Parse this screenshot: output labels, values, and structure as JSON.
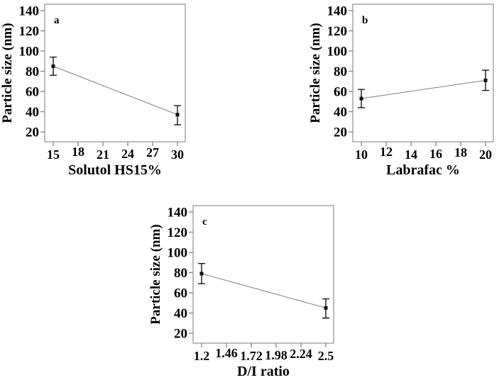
{
  "figure": {
    "background_color": "#ffffff",
    "text_color": "#000000",
    "colors": {
      "plot_border": "#a6a6a6",
      "tick_mark": "#8c8c8c",
      "trend_line": "#7f7f7f",
      "marker_and_error_bar": "#141414"
    }
  },
  "chart_data": [
    {
      "type": "line",
      "panel_label": "a",
      "title": "",
      "xlabel": "Solutol HS15%",
      "ylabel": "Particle size (nm)",
      "x_tick_labels": [
        "15",
        "18",
        "21",
        "24",
        "27",
        "30"
      ],
      "y_ticks": [
        20,
        40,
        60,
        80,
        100,
        120,
        140
      ],
      "y_tick_labels": [
        "20",
        "40",
        "60",
        "80",
        "100",
        "120",
        "140"
      ],
      "ylim": [
        10,
        146
      ],
      "grid": false,
      "legend": false,
      "points": [
        {
          "x": 15,
          "x_tick_index": 0,
          "y": 85,
          "err_low": 76,
          "err_high": 94
        },
        {
          "x": 30,
          "x_tick_index": 5,
          "y": 37,
          "err_low": 27,
          "err_high": 46
        }
      ]
    },
    {
      "type": "line",
      "panel_label": "b",
      "title": "",
      "xlabel": "Labrafac %",
      "ylabel": "Particle size (nm)",
      "x_tick_labels": [
        "10",
        "12",
        "14",
        "16",
        "18",
        "20"
      ],
      "y_ticks": [
        20,
        40,
        60,
        80,
        100,
        120,
        140
      ],
      "y_tick_labels": [
        "20",
        "40",
        "60",
        "80",
        "100",
        "120",
        "140"
      ],
      "ylim": [
        10,
        146
      ],
      "grid": false,
      "legend": false,
      "points": [
        {
          "x": 10,
          "x_tick_index": 0,
          "y": 53,
          "err_low": 44,
          "err_high": 62
        },
        {
          "x": 20,
          "x_tick_index": 5,
          "y": 71,
          "err_low": 61,
          "err_high": 81
        }
      ]
    },
    {
      "type": "line",
      "panel_label": "c",
      "title": "",
      "xlabel": "D/I ratio",
      "ylabel": "Particle size (nm)",
      "x_tick_labels": [
        "1.2",
        "1.46",
        "1.72",
        "1.98",
        "2.24",
        "2.5"
      ],
      "y_ticks": [
        20,
        40,
        60,
        80,
        100,
        120,
        140
      ],
      "y_tick_labels": [
        "20",
        "40",
        "60",
        "80",
        "100",
        "120",
        "140"
      ],
      "ylim": [
        10,
        146
      ],
      "grid": false,
      "legend": false,
      "points": [
        {
          "x": 1.2,
          "x_tick_index": 0,
          "y": 79,
          "err_low": 69,
          "err_high": 89
        },
        {
          "x": 2.5,
          "x_tick_index": 5,
          "y": 45,
          "err_low": 35,
          "err_high": 54
        }
      ]
    }
  ]
}
